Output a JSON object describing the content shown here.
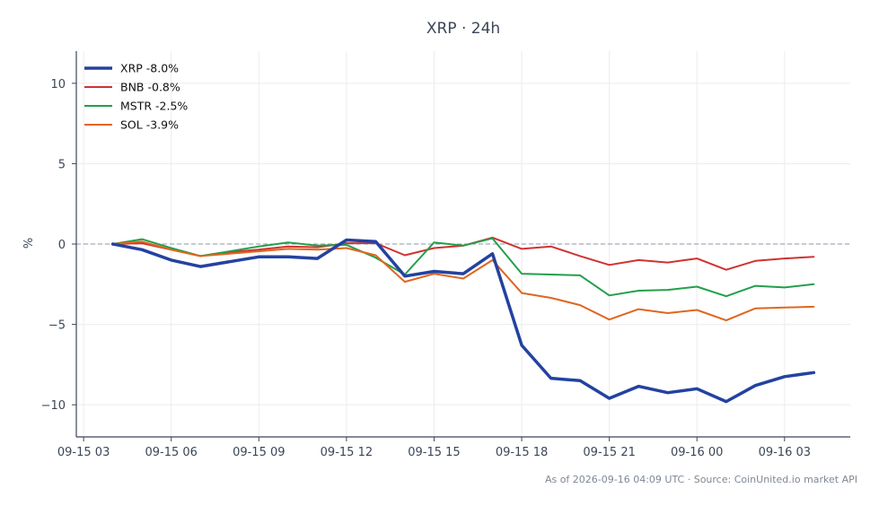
{
  "chart_data": {
    "type": "line",
    "title": "XRP · 24h",
    "xlabel": "",
    "ylabel": "%",
    "footnote": "As of 2026-09-16 04:09 UTC · Source: CoinUnited.io market API",
    "xlim": [
      "2026-09-15 02:45",
      "2026-09-16 05:15"
    ],
    "ylim": [
      -12,
      12
    ],
    "x_ticks": [
      "09-15 03",
      "09-15 06",
      "09-15 09",
      "09-15 12",
      "09-15 15",
      "09-15 18",
      "09-15 21",
      "09-16 00",
      "09-16 03"
    ],
    "y_ticks": [
      10,
      5,
      0,
      -5,
      -10
    ],
    "y_tick_labels": [
      "10",
      "5",
      "0",
      "−5",
      "−10"
    ],
    "grid": true,
    "zero_line": true,
    "legend_position": "top-left",
    "x": [
      "2026-09-15 04:00",
      "2026-09-15 05:00",
      "2026-09-15 06:00",
      "2026-09-15 07:00",
      "2026-09-15 08:00",
      "2026-09-15 09:00",
      "2026-09-15 10:00",
      "2026-09-15 11:00",
      "2026-09-15 12:00",
      "2026-09-15 13:00",
      "2026-09-15 14:00",
      "2026-09-15 15:00",
      "2026-09-15 16:00",
      "2026-09-15 17:00",
      "2026-09-15 18:00",
      "2026-09-15 19:00",
      "2026-09-15 20:00",
      "2026-09-15 21:00",
      "2026-09-15 22:00",
      "2026-09-15 23:00",
      "2026-09-16 00:00",
      "2026-09-16 01:00",
      "2026-09-16 02:00",
      "2026-09-16 03:00",
      "2026-09-16 04:00"
    ],
    "series": [
      {
        "name": "XRP -8.0%",
        "color": "#2342a0",
        "width": 3.5,
        "values": [
          0,
          -0.35,
          -1.0,
          -1.4,
          -1.1,
          -0.8,
          -0.8,
          -0.9,
          0.25,
          0.15,
          -2.0,
          -1.7,
          -1.85,
          -0.6,
          -6.3,
          -8.35,
          -8.5,
          -9.6,
          -8.85,
          -9.25,
          -9.0,
          -9.8,
          -8.8,
          -8.25,
          -8.0
        ]
      },
      {
        "name": "BNB -0.8%",
        "color": "#d03232",
        "width": 2,
        "values": [
          0,
          0.05,
          -0.35,
          -0.75,
          -0.5,
          -0.35,
          -0.15,
          -0.2,
          0.05,
          0.05,
          -0.7,
          -0.25,
          -0.1,
          0.4,
          -0.3,
          -0.15,
          -0.75,
          -1.3,
          -1.0,
          -1.15,
          -0.9,
          -1.6,
          -1.05,
          -0.9,
          -0.8
        ]
      },
      {
        "name": "MSTR -2.5%",
        "color": "#22a04b",
        "width": 2,
        "values": [
          0,
          0.3,
          -0.25,
          -0.75,
          -0.45,
          -0.15,
          0.1,
          -0.1,
          -0.05,
          -0.85,
          -1.9,
          0.1,
          -0.1,
          0.35,
          -1.85,
          -1.9,
          -1.95,
          -3.2,
          -2.9,
          -2.85,
          -2.65,
          -3.25,
          -2.6,
          -2.7,
          -2.5
        ]
      },
      {
        "name": "SOL -3.9%",
        "color": "#e0661e",
        "width": 2,
        "values": [
          0,
          0.15,
          -0.35,
          -0.75,
          -0.6,
          -0.45,
          -0.3,
          -0.35,
          -0.25,
          -0.7,
          -2.35,
          -1.85,
          -2.15,
          -1.0,
          -3.05,
          -3.35,
          -3.8,
          -4.7,
          -4.05,
          -4.3,
          -4.1,
          -4.75,
          -4.0,
          -3.95,
          -3.9
        ]
      }
    ]
  }
}
